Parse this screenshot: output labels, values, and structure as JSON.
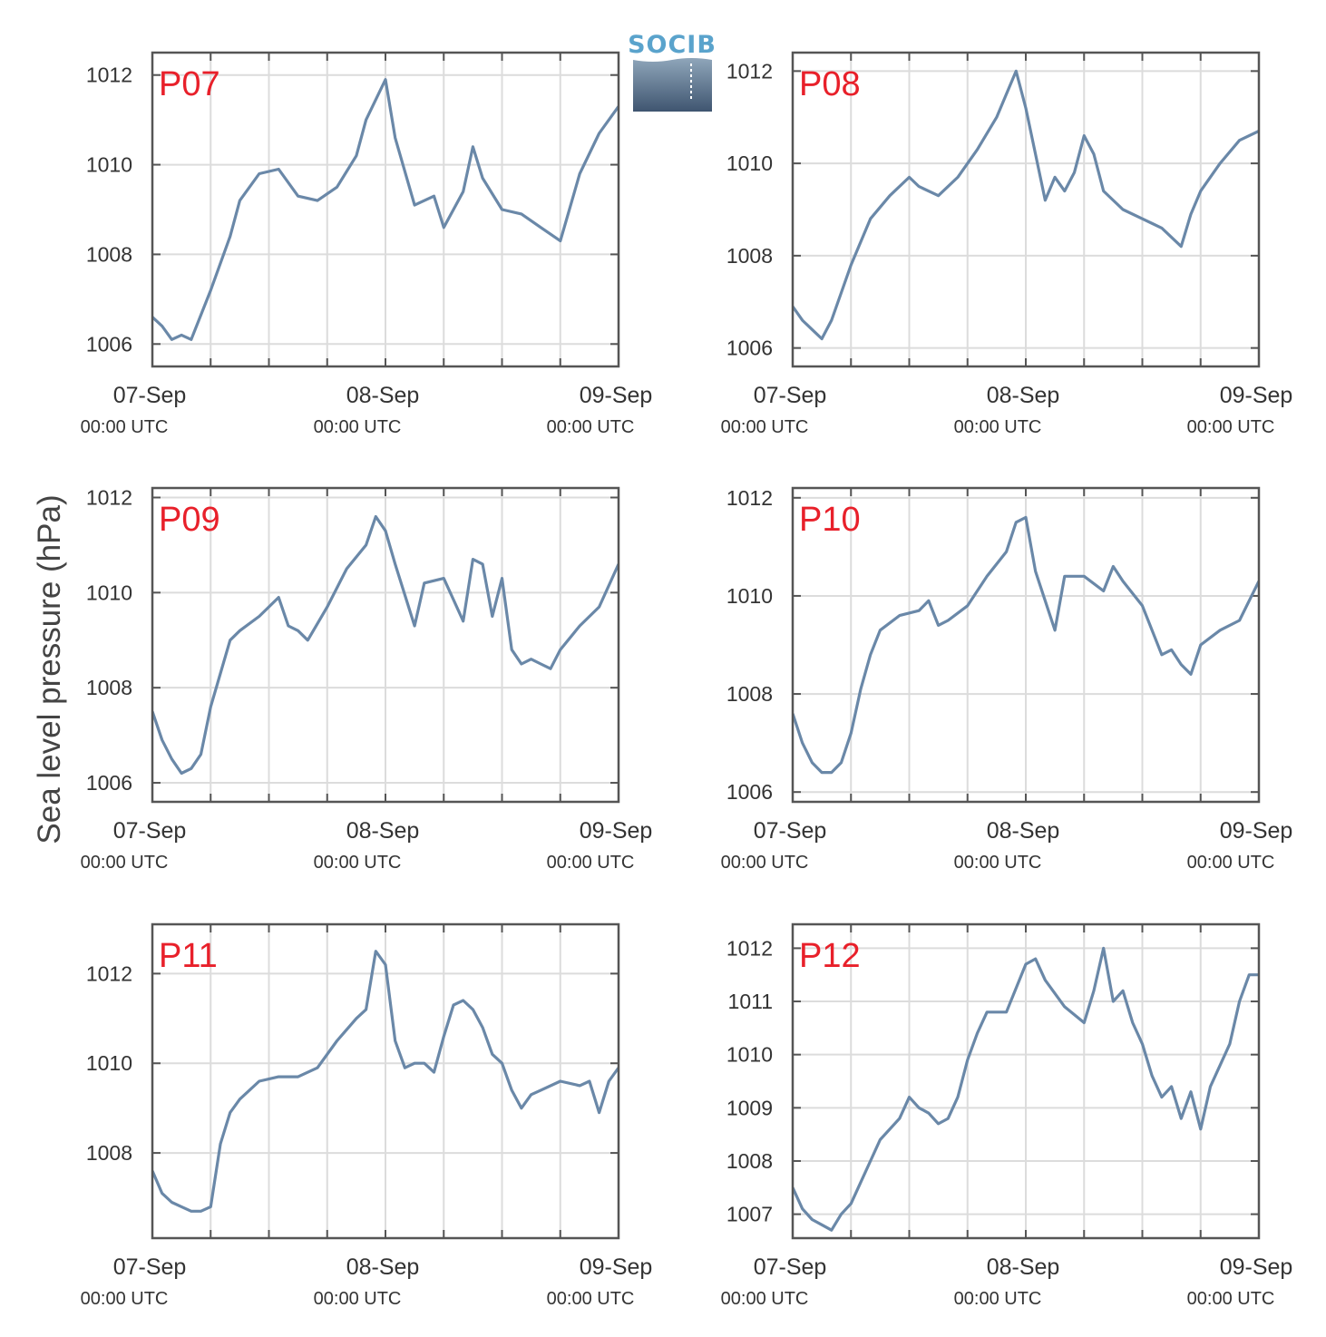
{
  "figure": {
    "ylabel": "Sea level pressure (hPa)",
    "logo_text": "SOCIB"
  },
  "colors": {
    "series": "#6a88a8",
    "panel_label": "#e8202a",
    "grid": "#dcdcdc",
    "frame": "#555555",
    "logo_light": "#5aa3cc",
    "logo_dark": "#3f5570"
  },
  "chart_data": [
    {
      "type": "line",
      "label": "P07",
      "x_range": [
        "07-Sep 00:00 UTC",
        "09-Sep 00:00 UTC"
      ],
      "x_ticks": [
        {
          "date": "07-Sep",
          "time": "00:00 UTC"
        },
        {
          "date": "08-Sep",
          "time": "00:00 UTC"
        },
        {
          "date": "09-Sep",
          "time": "00:00 UTC"
        }
      ],
      "ylim": [
        1005.5,
        1012.5
      ],
      "yticks": [
        1006,
        1008,
        1010,
        1012
      ],
      "grid": true,
      "series": [
        {
          "x_hours": [
            0,
            1,
            2,
            3,
            4,
            6,
            8,
            9,
            11,
            13,
            15,
            17,
            19,
            21,
            22,
            24,
            25,
            27,
            29,
            30,
            31,
            32,
            33,
            34,
            36,
            38,
            40,
            42,
            44,
            46,
            48
          ],
          "values": [
            1006.6,
            1006.4,
            1006.1,
            1006.2,
            1006.1,
            1007.2,
            1008.4,
            1009.2,
            1009.8,
            1009.9,
            1009.3,
            1009.2,
            1009.5,
            1010.2,
            1011.0,
            1011.9,
            1010.6,
            1009.1,
            1009.3,
            1008.6,
            1009.0,
            1009.4,
            1010.4,
            1009.7,
            1009.0,
            1008.9,
            1008.6,
            1008.3,
            1009.8,
            1010.7,
            1011.3
          ]
        }
      ]
    },
    {
      "type": "line",
      "label": "P08",
      "x_range": [
        "07-Sep 00:00 UTC",
        "09-Sep 00:00 UTC"
      ],
      "x_ticks": [
        {
          "date": "07-Sep",
          "time": "00:00 UTC"
        },
        {
          "date": "08-Sep",
          "time": "00:00 UTC"
        },
        {
          "date": "09-Sep",
          "time": "00:00 UTC"
        }
      ],
      "ylim": [
        1005.6,
        1012.4
      ],
      "yticks": [
        1006,
        1008,
        1010,
        1012
      ],
      "grid": true,
      "series": [
        {
          "x_hours": [
            0,
            1,
            2,
            3,
            4,
            6,
            8,
            10,
            12,
            13,
            15,
            17,
            19,
            21,
            22,
            23,
            24,
            26,
            27,
            28,
            29,
            30,
            31,
            32,
            34,
            36,
            38,
            40,
            41,
            42,
            44,
            46,
            48
          ],
          "values": [
            1006.9,
            1006.6,
            1006.4,
            1006.2,
            1006.6,
            1007.8,
            1008.8,
            1009.3,
            1009.7,
            1009.5,
            1009.3,
            1009.7,
            1010.3,
            1011.0,
            1011.5,
            1012.0,
            1011.2,
            1009.2,
            1009.7,
            1009.4,
            1009.8,
            1010.6,
            1010.2,
            1009.4,
            1009.0,
            1008.8,
            1008.6,
            1008.2,
            1008.9,
            1009.4,
            1010.0,
            1010.5,
            1010.7
          ]
        }
      ]
    },
    {
      "type": "line",
      "label": "P09",
      "x_range": [
        "07-Sep 00:00 UTC",
        "09-Sep 00:00 UTC"
      ],
      "x_ticks": [
        {
          "date": "07-Sep",
          "time": "00:00 UTC"
        },
        {
          "date": "08-Sep",
          "time": "00:00 UTC"
        },
        {
          "date": "09-Sep",
          "time": "00:00 UTC"
        }
      ],
      "ylim": [
        1005.6,
        1012.2
      ],
      "yticks": [
        1006,
        1008,
        1010,
        1012
      ],
      "grid": true,
      "series": [
        {
          "x_hours": [
            0,
            1,
            2,
            3,
            4,
            5,
            6,
            7,
            8,
            9,
            11,
            13,
            14,
            15,
            16,
            18,
            20,
            22,
            23,
            24,
            25,
            27,
            28,
            30,
            32,
            33,
            34,
            35,
            36,
            37,
            38,
            39,
            40,
            41,
            42,
            44,
            46,
            48
          ],
          "values": [
            1007.5,
            1006.9,
            1006.5,
            1006.2,
            1006.3,
            1006.6,
            1007.6,
            1008.3,
            1009.0,
            1009.2,
            1009.5,
            1009.9,
            1009.3,
            1009.2,
            1009.0,
            1009.7,
            1010.5,
            1011.0,
            1011.6,
            1011.3,
            1010.6,
            1009.3,
            1010.2,
            1010.3,
            1009.4,
            1010.7,
            1010.6,
            1009.5,
            1010.3,
            1008.8,
            1008.5,
            1008.6,
            1008.5,
            1008.4,
            1008.8,
            1009.3,
            1009.7,
            1010.6
          ]
        }
      ]
    },
    {
      "type": "line",
      "label": "P10",
      "x_range": [
        "07-Sep 00:00 UTC",
        "09-Sep 00:00 UTC"
      ],
      "x_ticks": [
        {
          "date": "07-Sep",
          "time": "00:00 UTC"
        },
        {
          "date": "08-Sep",
          "time": "00:00 UTC"
        },
        {
          "date": "09-Sep",
          "time": "00:00 UTC"
        }
      ],
      "ylim": [
        1005.8,
        1012.2
      ],
      "yticks": [
        1006,
        1008,
        1010,
        1012
      ],
      "grid": true,
      "series": [
        {
          "x_hours": [
            0,
            1,
            2,
            3,
            4,
            5,
            6,
            7,
            8,
            9,
            11,
            13,
            14,
            15,
            16,
            18,
            20,
            22,
            23,
            24,
            25,
            27,
            28,
            30,
            32,
            33,
            34,
            36,
            38,
            39,
            40,
            41,
            42,
            44,
            46,
            48
          ],
          "values": [
            1007.6,
            1007.0,
            1006.6,
            1006.4,
            1006.4,
            1006.6,
            1007.2,
            1008.1,
            1008.8,
            1009.3,
            1009.6,
            1009.7,
            1009.9,
            1009.4,
            1009.5,
            1009.8,
            1010.4,
            1010.9,
            1011.5,
            1011.6,
            1010.5,
            1009.3,
            1010.4,
            1010.4,
            1010.1,
            1010.6,
            1010.3,
            1009.8,
            1008.8,
            1008.9,
            1008.6,
            1008.4,
            1009.0,
            1009.3,
            1009.5,
            1010.3
          ]
        }
      ]
    },
    {
      "type": "line",
      "label": "P11",
      "x_range": [
        "07-Sep 00:00 UTC",
        "09-Sep 00:00 UTC"
      ],
      "x_ticks": [
        {
          "date": "07-Sep",
          "time": "00:00 UTC"
        },
        {
          "date": "08-Sep",
          "time": "00:00 UTC"
        },
        {
          "date": "09-Sep",
          "time": "00:00 UTC"
        }
      ],
      "ylim": [
        1006.1,
        1013.1
      ],
      "yticks": [
        1008,
        1010,
        1012
      ],
      "grid": true,
      "series": [
        {
          "x_hours": [
            0,
            1,
            2,
            3,
            4,
            5,
            6,
            7,
            8,
            9,
            11,
            13,
            15,
            17,
            19,
            21,
            22,
            23,
            24,
            25,
            26,
            27,
            28,
            29,
            30,
            31,
            32,
            33,
            34,
            35,
            36,
            37,
            38,
            39,
            40,
            42,
            44,
            45,
            46,
            47,
            48
          ],
          "values": [
            1007.6,
            1007.1,
            1006.9,
            1006.8,
            1006.7,
            1006.7,
            1006.8,
            1008.2,
            1008.9,
            1009.2,
            1009.6,
            1009.7,
            1009.7,
            1009.9,
            1010.5,
            1011.0,
            1011.2,
            1012.5,
            1012.2,
            1010.5,
            1009.9,
            1010.0,
            1010.0,
            1009.8,
            1010.6,
            1011.3,
            1011.4,
            1011.2,
            1010.8,
            1010.2,
            1010.0,
            1009.4,
            1009.0,
            1009.3,
            1009.4,
            1009.6,
            1009.5,
            1009.6,
            1008.9,
            1009.6,
            1009.9
          ]
        }
      ]
    },
    {
      "type": "line",
      "label": "P12",
      "x_range": [
        "07-Sep 00:00 UTC",
        "09-Sep 00:00 UTC"
      ],
      "x_ticks": [
        {
          "date": "07-Sep",
          "time": "00:00 UTC"
        },
        {
          "date": "08-Sep",
          "time": "00:00 UTC"
        },
        {
          "date": "09-Sep",
          "time": "00:00 UTC"
        }
      ],
      "ylim": [
        1006.55,
        1012.45
      ],
      "yticks": [
        1007,
        1008,
        1009,
        1010,
        1011,
        1012
      ],
      "grid": true,
      "series": [
        {
          "x_hours": [
            0,
            1,
            2,
            3,
            4,
            5,
            6,
            7,
            8,
            9,
            11,
            12,
            13,
            14,
            15,
            16,
            17,
            18,
            19,
            20,
            22,
            24,
            25,
            26,
            28,
            30,
            31,
            32,
            33,
            34,
            35,
            36,
            37,
            38,
            39,
            40,
            41,
            42,
            43,
            44,
            45,
            46,
            47,
            48
          ],
          "values": [
            1007.5,
            1007.1,
            1006.9,
            1006.8,
            1006.7,
            1007.0,
            1007.2,
            1007.6,
            1008.0,
            1008.4,
            1008.8,
            1009.2,
            1009.0,
            1008.9,
            1008.7,
            1008.8,
            1009.2,
            1009.9,
            1010.4,
            1010.8,
            1010.8,
            1011.7,
            1011.8,
            1011.4,
            1010.9,
            1010.6,
            1011.2,
            1012.0,
            1011.0,
            1011.2,
            1010.6,
            1010.2,
            1009.6,
            1009.2,
            1009.4,
            1008.8,
            1009.3,
            1008.6,
            1009.4,
            1009.8,
            1010.2,
            1011.0,
            1011.5,
            1011.5
          ]
        }
      ]
    }
  ]
}
